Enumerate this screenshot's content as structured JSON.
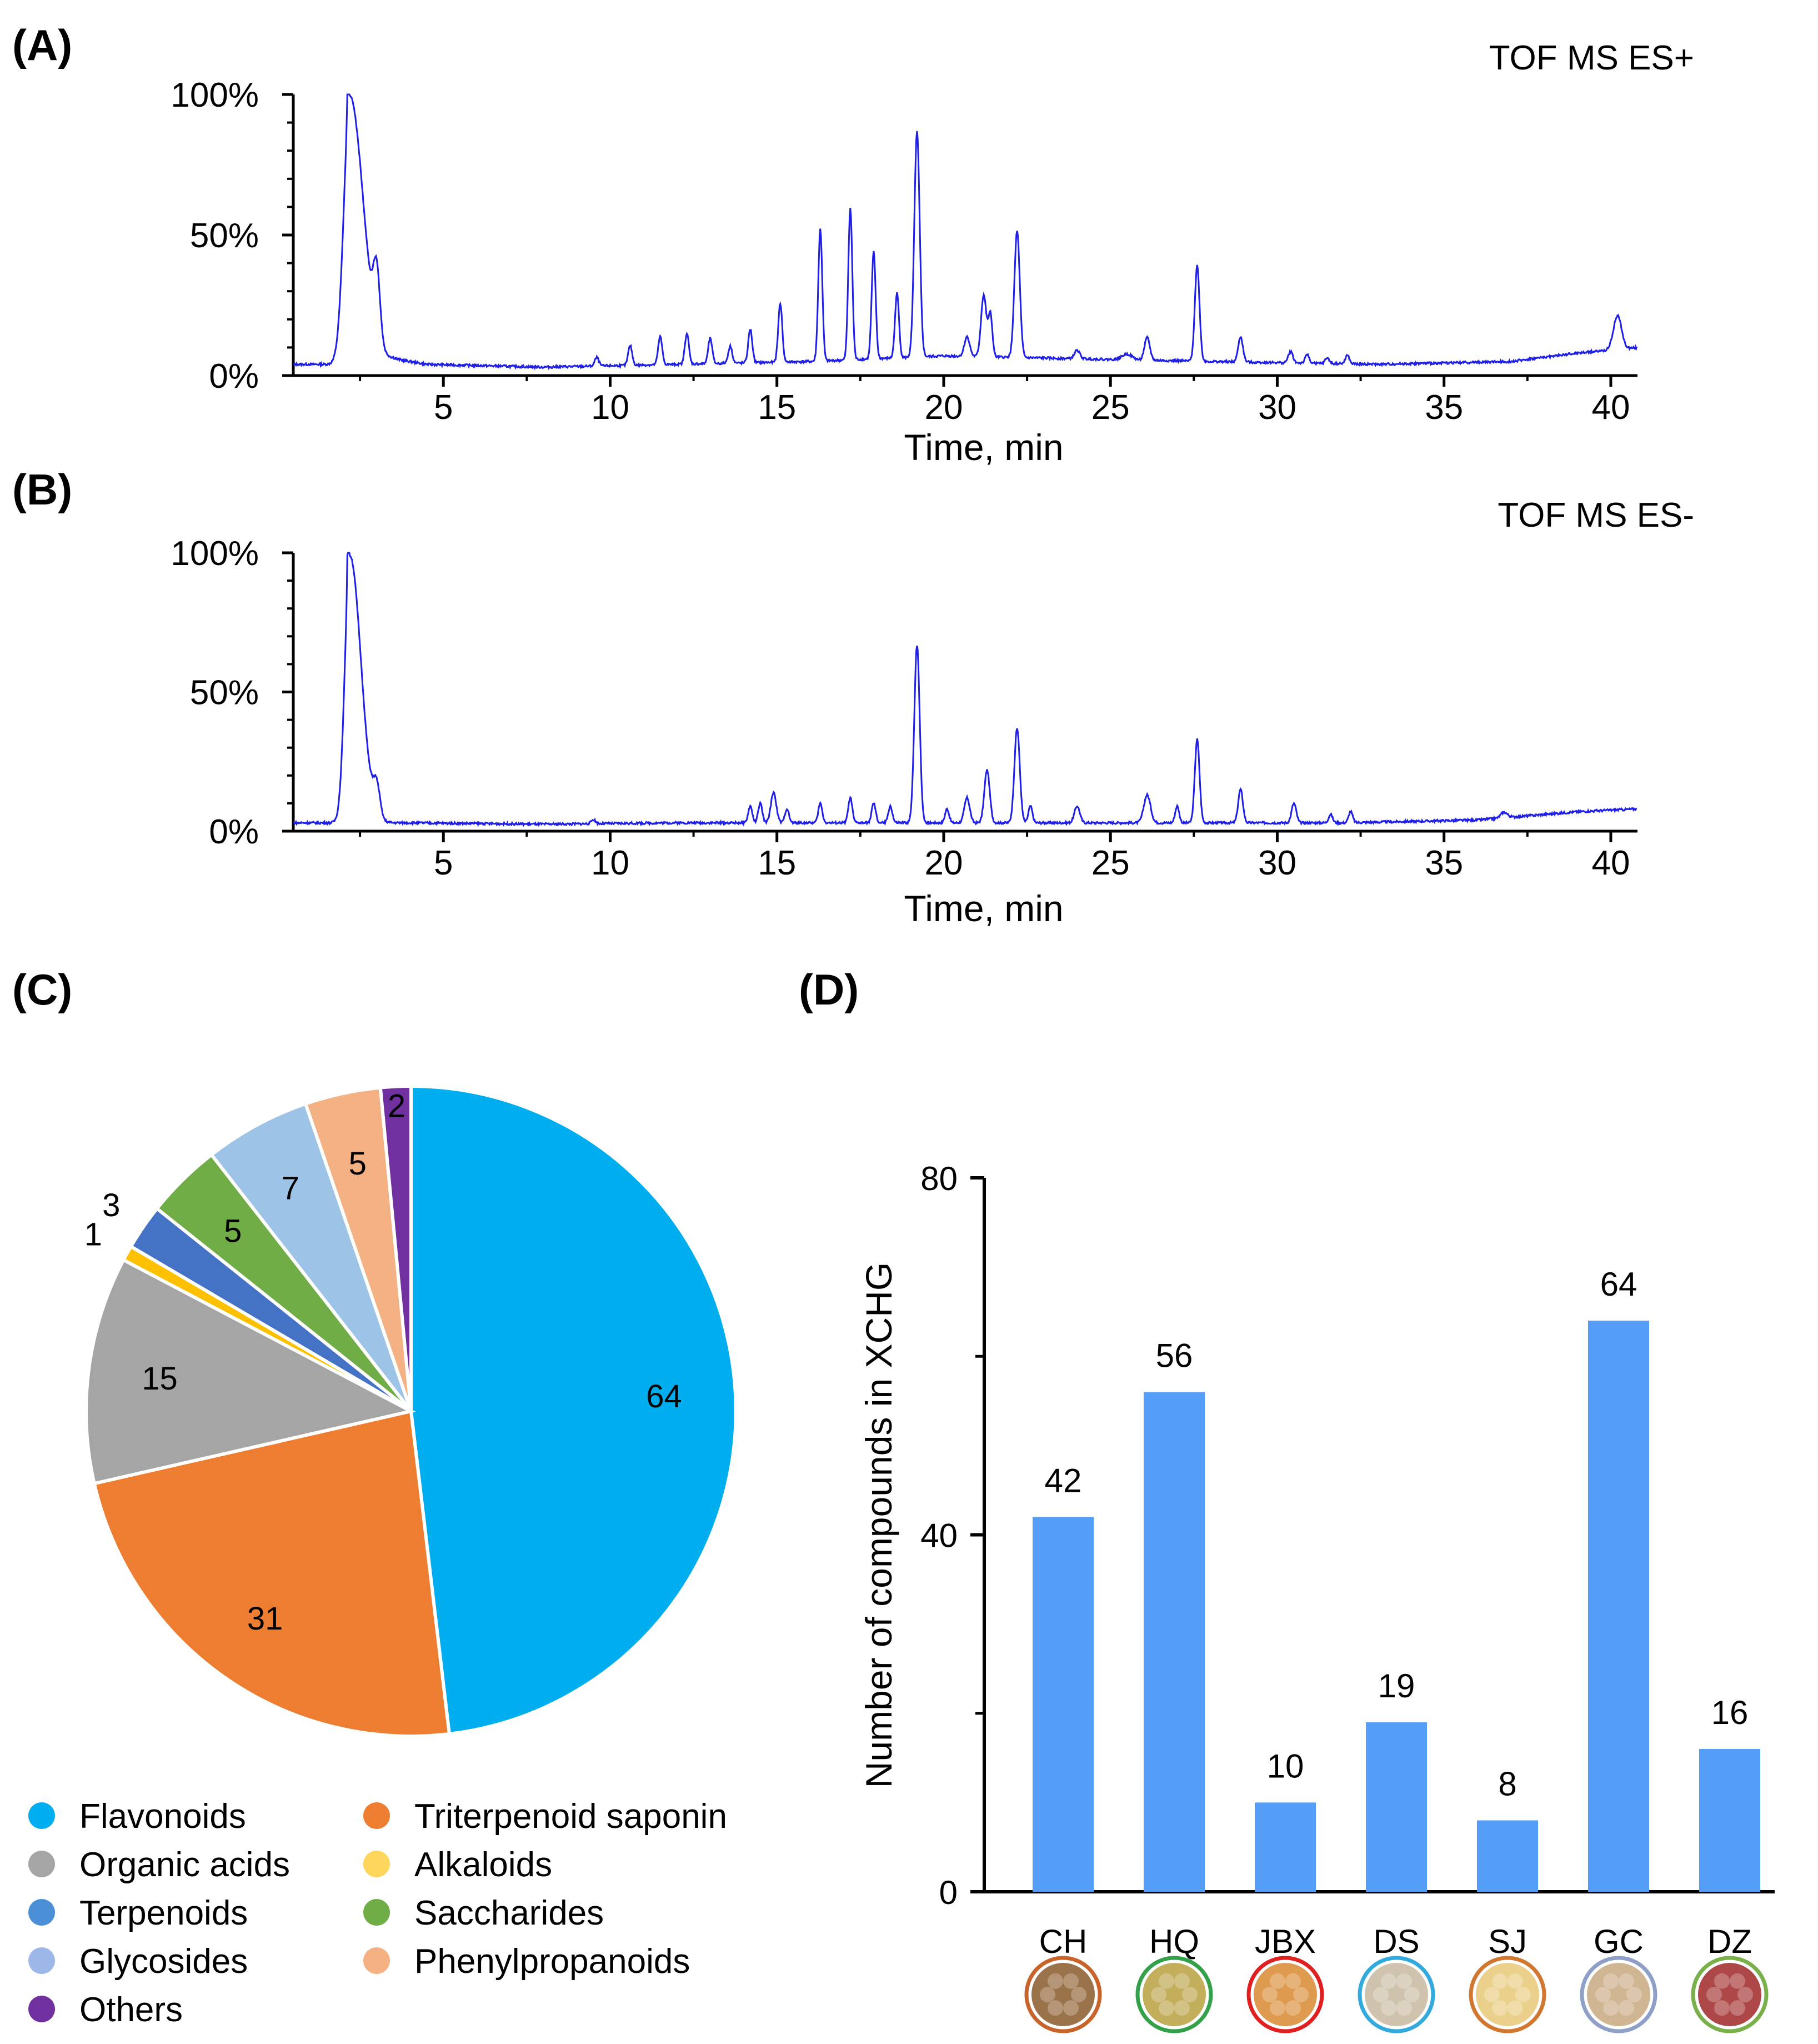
{
  "panels": {
    "a": {
      "label": "(A)"
    },
    "b": {
      "label": "(B)"
    },
    "c": {
      "label": "(C)"
    },
    "d": {
      "label": "(D)"
    }
  },
  "colors": {
    "trace": "#1f1fe6",
    "bar": "#559ef8",
    "pie": [
      "#00aeef",
      "#ed7d31",
      "#a5a5a5",
      "#ffc000",
      "#4472c4",
      "#70ad47",
      "#9dc3e6",
      "#f4b183",
      "#7030a0"
    ]
  },
  "chart_data": [
    {
      "type": "line",
      "title": "TOF MS ES+",
      "xlabel": "Time, min",
      "ylabel": "",
      "xlim": [
        0.5,
        40.8
      ],
      "ylim": [
        0,
        100
      ],
      "xticks": [
        "5",
        "10",
        "15",
        "20",
        "25",
        "30",
        "35",
        "40"
      ],
      "yticks": [
        "0%",
        "50%",
        "100%"
      ],
      "baseline": [
        [
          0.5,
          4
        ],
        [
          2,
          4
        ],
        [
          3.5,
          6
        ],
        [
          4.5,
          4
        ],
        [
          8,
          3
        ],
        [
          12,
          4
        ],
        [
          16,
          5
        ],
        [
          20,
          7
        ],
        [
          24,
          6
        ],
        [
          28,
          5
        ],
        [
          33,
          4
        ],
        [
          37,
          5
        ],
        [
          39,
          8
        ],
        [
          40.8,
          10
        ]
      ],
      "peaks": [
        [
          2.2,
          95,
          0.18
        ],
        [
          3.0,
          24,
          0.1
        ],
        [
          9.6,
          3,
          0.06
        ],
        [
          10.6,
          7,
          0.06
        ],
        [
          11.5,
          10,
          0.06
        ],
        [
          12.3,
          11,
          0.06
        ],
        [
          13.0,
          9,
          0.06
        ],
        [
          13.6,
          6,
          0.06
        ],
        [
          14.2,
          12,
          0.06
        ],
        [
          15.1,
          21,
          0.06
        ],
        [
          16.3,
          47,
          0.06
        ],
        [
          17.2,
          54,
          0.06
        ],
        [
          17.9,
          38,
          0.06
        ],
        [
          18.6,
          23,
          0.06
        ],
        [
          19.2,
          80,
          0.08
        ],
        [
          20.7,
          7,
          0.08
        ],
        [
          21.2,
          22,
          0.08
        ],
        [
          21.4,
          15,
          0.06
        ],
        [
          22.2,
          45,
          0.08
        ],
        [
          24.0,
          3,
          0.08
        ],
        [
          25.5,
          2,
          0.15
        ],
        [
          26.1,
          8,
          0.08
        ],
        [
          27.6,
          34,
          0.07
        ],
        [
          28.9,
          9,
          0.07
        ],
        [
          30.4,
          4,
          0.07
        ],
        [
          30.9,
          3,
          0.06
        ],
        [
          31.5,
          2,
          0.06
        ],
        [
          32.1,
          3,
          0.06
        ],
        [
          40.2,
          12,
          0.12
        ]
      ]
    },
    {
      "type": "line",
      "title": "TOF MS ES-",
      "xlabel": "Time, min",
      "ylabel": "",
      "xlim": [
        0.5,
        40.8
      ],
      "ylim": [
        0,
        100
      ],
      "xticks": [
        "5",
        "10",
        "15",
        "20",
        "25",
        "30",
        "35",
        "40"
      ],
      "yticks": [
        "0%",
        "50%",
        "100%"
      ],
      "baseline": [
        [
          0.5,
          3
        ],
        [
          2,
          3
        ],
        [
          4,
          3
        ],
        [
          8,
          2.5
        ],
        [
          12,
          3
        ],
        [
          16,
          3
        ],
        [
          20,
          3
        ],
        [
          24,
          3
        ],
        [
          28,
          3
        ],
        [
          32,
          3
        ],
        [
          36,
          4
        ],
        [
          39,
          7
        ],
        [
          40.8,
          8
        ]
      ],
      "peaks": [
        [
          2.2,
          96,
          0.15
        ],
        [
          3.0,
          11,
          0.1
        ],
        [
          9.5,
          1.5,
          0.06
        ],
        [
          14.2,
          6,
          0.06
        ],
        [
          14.5,
          7,
          0.06
        ],
        [
          14.9,
          11,
          0.08
        ],
        [
          15.3,
          5,
          0.06
        ],
        [
          16.3,
          7,
          0.06
        ],
        [
          17.2,
          9,
          0.06
        ],
        [
          17.9,
          7,
          0.06
        ],
        [
          18.4,
          6,
          0.06
        ],
        [
          19.2,
          64,
          0.08
        ],
        [
          20.1,
          5,
          0.06
        ],
        [
          20.7,
          9,
          0.08
        ],
        [
          21.3,
          19,
          0.08
        ],
        [
          22.2,
          34,
          0.08
        ],
        [
          22.6,
          6,
          0.06
        ],
        [
          24.0,
          6,
          0.08
        ],
        [
          26.1,
          10,
          0.1
        ],
        [
          27.0,
          6,
          0.06
        ],
        [
          27.6,
          30,
          0.07
        ],
        [
          28.9,
          12,
          0.07
        ],
        [
          30.5,
          7,
          0.07
        ],
        [
          31.6,
          3,
          0.06
        ],
        [
          32.2,
          4,
          0.06
        ],
        [
          36.8,
          2,
          0.1
        ]
      ]
    },
    {
      "type": "pie",
      "title": "",
      "labels": [
        "Flavonoids",
        "Triterpenoid saponin",
        "Organic acids",
        "Alkaloids",
        "Terpenoids",
        "Saccharides",
        "Glycosides",
        "Phenylpropanoids",
        "Others"
      ],
      "values": [
        64,
        31,
        15,
        1,
        3,
        5,
        7,
        5,
        2
      ],
      "legend": "bottom"
    },
    {
      "type": "bar",
      "title": "",
      "categories": [
        "CH",
        "HQ",
        "JBX",
        "DS",
        "SJ",
        "GC",
        "DZ"
      ],
      "values": [
        42,
        56,
        10,
        19,
        8,
        64,
        16
      ],
      "ylabel": "Number of compounds in XCHG",
      "xlabel": "",
      "ylim": [
        0,
        80
      ],
      "yticks": [
        "0",
        "40",
        "80"
      ]
    }
  ],
  "herb_icons": [
    "CH-herb-icon",
    "HQ-herb-icon",
    "JBX-herb-icon",
    "DS-herb-icon",
    "SJ-herb-icon",
    "GC-herb-icon",
    "DZ-herb-icon"
  ]
}
